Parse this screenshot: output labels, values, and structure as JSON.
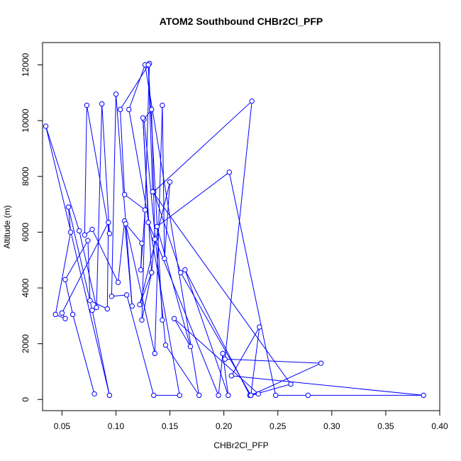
{
  "chart_data": {
    "type": "line",
    "title": "ATOM2 Southbound CHBr2Cl_PFP",
    "xlabel": "CHBr2Cl_PFP",
    "ylabel": "Altitude (m)",
    "xlim": [
      0.032,
      0.4
    ],
    "ylim": [
      -400,
      12800
    ],
    "x_ticks": [
      {
        "value": 0.05,
        "label": "0.05"
      },
      {
        "value": 0.1,
        "label": "0.10"
      },
      {
        "value": 0.15,
        "label": "0.15"
      },
      {
        "value": 0.2,
        "label": "0.20"
      },
      {
        "value": 0.25,
        "label": "0.25"
      },
      {
        "value": 0.3,
        "label": "0.30"
      },
      {
        "value": 0.35,
        "label": "0.35"
      },
      {
        "value": 0.4,
        "label": "0.40"
      }
    ],
    "y_ticks": [
      {
        "value": 0,
        "label": "0"
      },
      {
        "value": 2000,
        "label": "2000"
      },
      {
        "value": 4000,
        "label": "4000"
      },
      {
        "value": 6000,
        "label": "6000"
      },
      {
        "value": 8000,
        "label": "8000"
      },
      {
        "value": 10000,
        "label": "10000"
      },
      {
        "value": 12000,
        "label": "12000"
      }
    ],
    "grid": false,
    "color": "#0000ff",
    "marker": "open-circle",
    "series": [
      {
        "x": [
          0.08,
          0.06,
          0.053,
          0.074,
          0.076,
          0.092,
          0.093,
          0.05,
          0.053,
          0.044,
          0.058,
          0.056,
          0.078,
          0.094,
          0.035,
          0.066,
          0.082,
          0.087,
          0.094,
          0.073
        ],
        "y": [
          200,
          3050,
          4300,
          5700,
          3550,
          3250,
          6350,
          3100,
          2900,
          3050,
          6000,
          6900,
          3200,
          150,
          9800,
          6050,
          3300,
          10600,
          5950,
          10550
        ]
      },
      {
        "x": [
          0.071,
          0.078,
          0.102,
          0.108,
          0.115,
          0.1,
          0.096,
          0.11,
          0.135,
          0.159,
          0.112,
          0.127,
          0.177,
          0.146,
          0.126,
          0.133,
          0.136,
          0.133,
          0.124,
          0.131
        ],
        "y": [
          5900,
          6100,
          4200,
          6400,
          3350,
          10950,
          3700,
          3750,
          150,
          150,
          10400,
          12000,
          150,
          1950,
          10050,
          10400,
          5750,
          4550,
          2850,
          12050
        ]
      },
      {
        "x": [
          0.104,
          0.108,
          0.127,
          0.123,
          0.124,
          0.109,
          0.136,
          0.143,
          0.145,
          0.15,
          0.122,
          0.133,
          0.125,
          0.13,
          0.195,
          0.199,
          0.204,
          0.164,
          0.224,
          0.232
        ],
        "y": [
          10400,
          7350,
          6800,
          4650,
          5600,
          6300,
          1650,
          10550,
          5050,
          7800,
          3400,
          4550,
          10100,
          6350,
          150,
          1650,
          150,
          4650,
          150,
          200
        ]
      },
      {
        "x": [
          0.154,
          0.169,
          0.138,
          0.205,
          0.248,
          0.278,
          0.385,
          0.207,
          0.233,
          0.225,
          0.29,
          0.201,
          0.226,
          0.135,
          0.16,
          0.225,
          0.262,
          0.134,
          0.13,
          0.143
        ],
        "y": [
          2900,
          1900,
          6200,
          8150,
          150,
          150,
          150,
          850,
          2600,
          150,
          1300,
          1450,
          10700,
          7450,
          4550,
          150,
          550,
          7450,
          12000,
          2850
        ]
      }
    ]
  }
}
